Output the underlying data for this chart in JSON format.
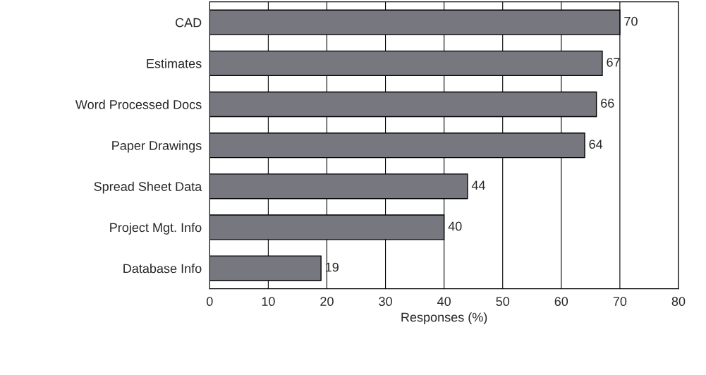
{
  "chart_data": {
    "type": "bar",
    "orientation": "horizontal",
    "xlabel": "Responses (%)",
    "categories": [
      "CAD",
      "Estimates",
      "Word Processed Docs",
      "Paper Drawings",
      "Spread Sheet Data",
      "Project Mgt. Info",
      "Database Info"
    ],
    "values": [
      70,
      67,
      66,
      64,
      44,
      40,
      19
    ],
    "color": "#777780",
    "xlim": [
      0,
      80
    ],
    "xticks": [
      0,
      10,
      20,
      30,
      40,
      50,
      60,
      70,
      80
    ],
    "grid": "x",
    "data_labels": true,
    "legend": false
  }
}
